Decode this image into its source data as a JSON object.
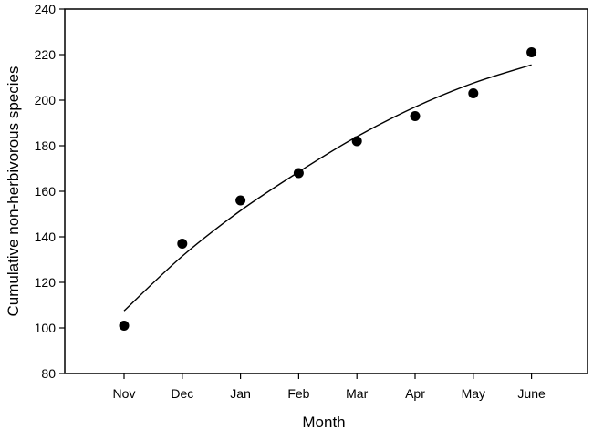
{
  "chart_data": {
    "type": "scatter",
    "title": "",
    "xlabel": "Month",
    "ylabel": "Cumulative non-herbivorous species",
    "categories": [
      "Nov",
      "Dec",
      "Jan",
      "Feb",
      "Mar",
      "Apr",
      "May",
      "June"
    ],
    "series": [
      {
        "kind": "points",
        "values": [
          101,
          137,
          156,
          168,
          182,
          193,
          203,
          221
        ]
      },
      {
        "kind": "fitted-curve",
        "values": [
          107.5,
          131.5,
          151.5,
          168.5,
          184,
          197,
          207.5,
          215.5
        ]
      }
    ],
    "ylim": [
      80,
      240
    ],
    "yticks": [
      80,
      100,
      120,
      140,
      160,
      180,
      200,
      220,
      240
    ],
    "grid": false,
    "legend": "none",
    "colors": {
      "points": "#000000",
      "curve": "#000000",
      "axis": "#000000",
      "background": "#ffffff"
    }
  }
}
